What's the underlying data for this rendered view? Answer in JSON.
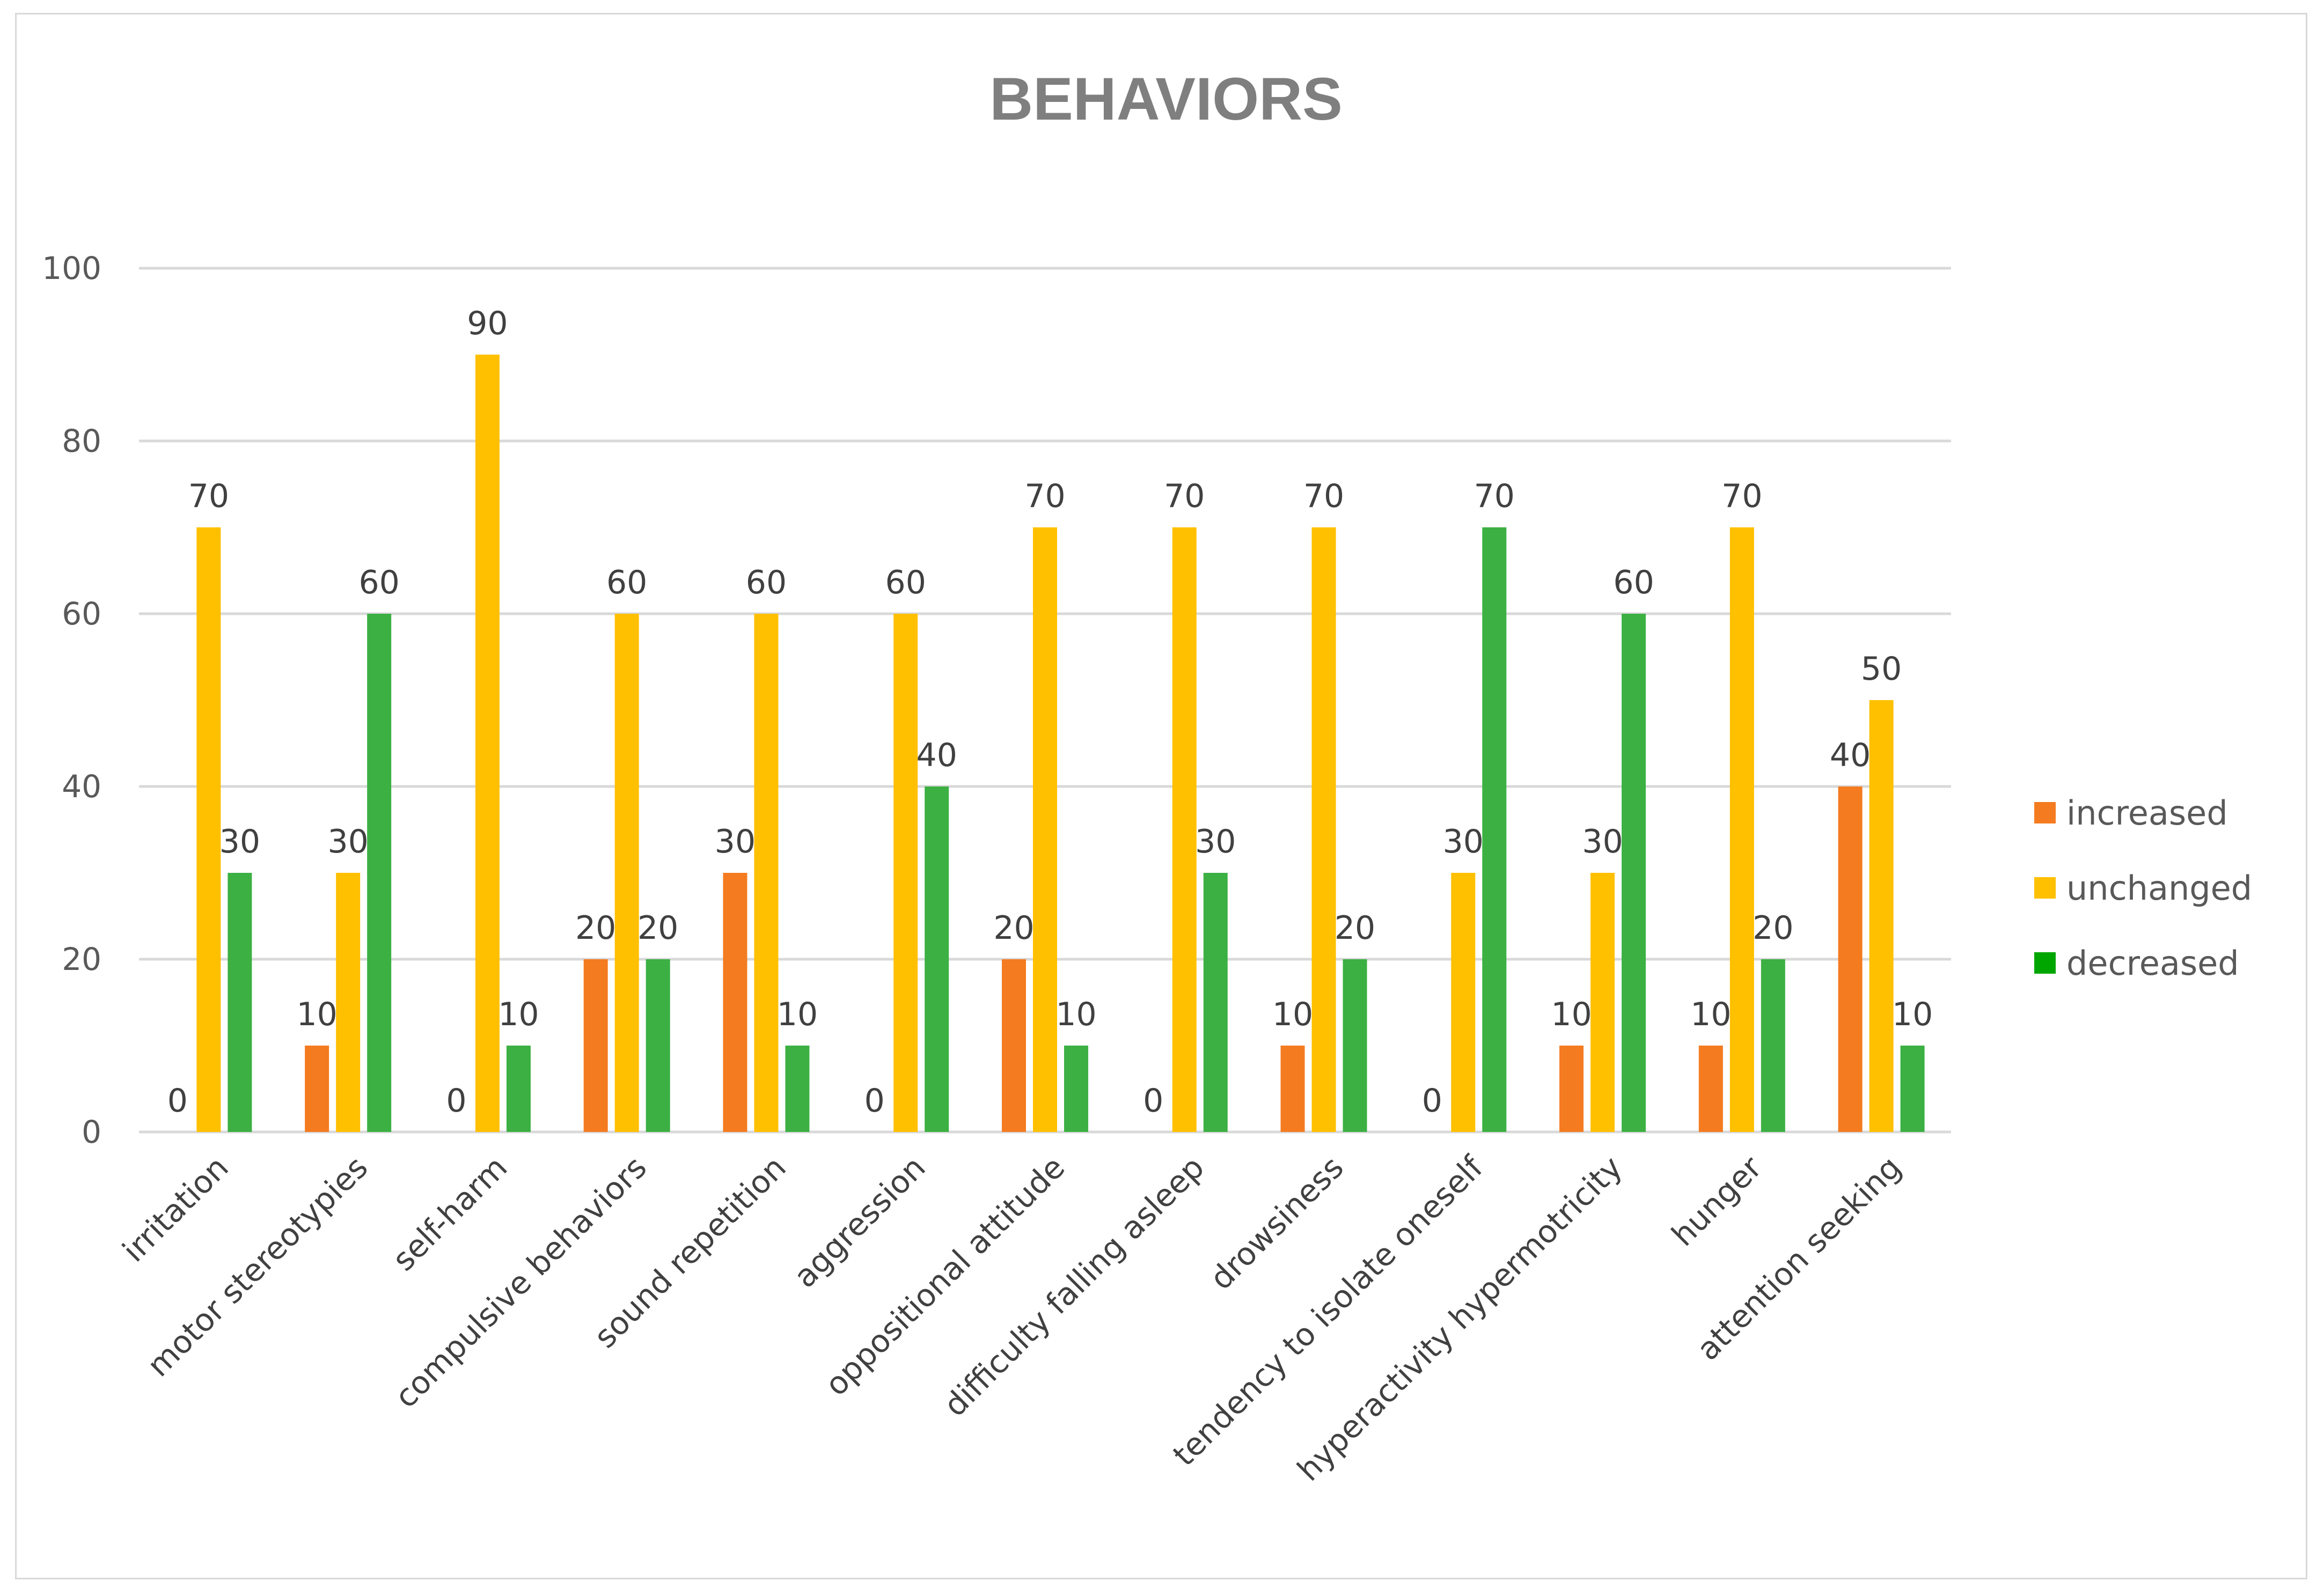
{
  "chart_data": {
    "type": "bar",
    "title": "BEHAVIORS",
    "xlabel": "",
    "ylabel": "",
    "ylim": [
      0,
      100
    ],
    "yticks": [
      0,
      20,
      40,
      60,
      80,
      100
    ],
    "grid": true,
    "legend_position": "right",
    "categories": [
      "irritation",
      "motor stereotypies",
      "self-harm",
      "compulsive behaviors",
      "sound repetition",
      "aggression",
      "oppositional attitude",
      "difficulty falling asleep",
      "drowsiness",
      "tendency to isolate oneself",
      "hyperactivity hypermotricity",
      "hunger",
      "attention seeking"
    ],
    "series": [
      {
        "name": "increased",
        "color": "#f47b20",
        "values": [
          0,
          10,
          0,
          20,
          30,
          0,
          20,
          0,
          10,
          0,
          10,
          10,
          40
        ]
      },
      {
        "name": "unchanged",
        "color": "#ffc000",
        "values": [
          70,
          30,
          90,
          60,
          60,
          60,
          70,
          70,
          70,
          30,
          30,
          70,
          50
        ]
      },
      {
        "name": "decreased",
        "color": "#3cb043",
        "values": [
          30,
          60,
          10,
          20,
          10,
          40,
          10,
          30,
          20,
          70,
          60,
          20,
          10
        ]
      }
    ],
    "legend_marker_color_decreased": "#00a600"
  }
}
